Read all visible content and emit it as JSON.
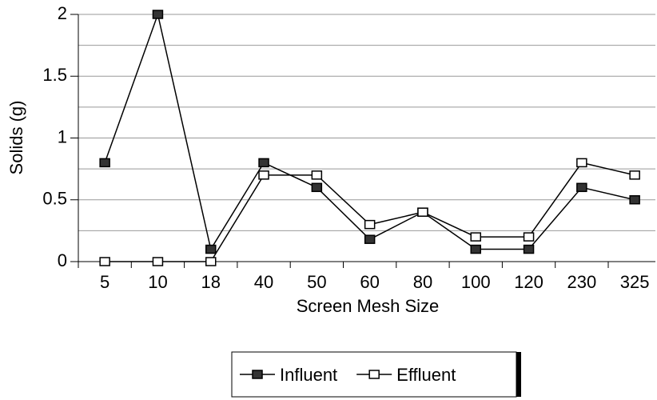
{
  "chart_data": {
    "type": "line",
    "categories": [
      "5",
      "10",
      "18",
      "40",
      "50",
      "60",
      "80",
      "100",
      "120",
      "230",
      "325"
    ],
    "series": [
      {
        "name": "Influent",
        "color": "#000000",
        "marker_fill": "#333333",
        "values": [
          0.8,
          2.0,
          0.1,
          0.8,
          0.6,
          0.18,
          0.4,
          0.1,
          0.1,
          0.6,
          0.5
        ]
      },
      {
        "name": "Effluent",
        "color": "#000000",
        "marker_fill": "#ffffff",
        "values": [
          0,
          0,
          0,
          0.7,
          0.7,
          0.3,
          0.4,
          0.2,
          0.2,
          0.8,
          0.7
        ]
      }
    ],
    "x_label": "Screen Mesh Size",
    "y_label": "Solids (g)",
    "ylim": [
      0,
      2
    ],
    "yticks": [
      0,
      0.5,
      1,
      1.5,
      2
    ],
    "minor_yticks": [
      0.25,
      0.75,
      1.25,
      1.75
    ],
    "grid": true,
    "legend": "bottom"
  }
}
